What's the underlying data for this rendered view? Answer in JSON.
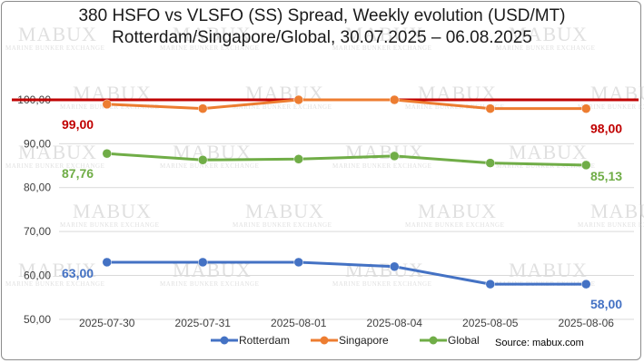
{
  "title_line1": "380 HSFO vs VLSFO (SS) Spread, Weekly evolution (USD/MT)",
  "title_line2": "Rotterdam/Singapore/Global, 30.07.2025 – 06.08.2025",
  "source": "Source: mabux.com",
  "watermark": {
    "brand": "MABUX",
    "tagline": "MARINE BUNKER EXCHANGE"
  },
  "colors": {
    "rotterdam": "#4472c4",
    "singapore": "#ed7d31",
    "global": "#70ad47",
    "reference": "#c00000"
  },
  "chart_data": {
    "type": "line",
    "title": "380 HSFO vs VLSFO (SS) Spread, Weekly evolution (USD/MT) Rotterdam/Singapore/Global, 30.07.2025 – 06.08.2025",
    "categories": [
      "2025-07-30",
      "2025-07-31",
      "2025-08-01",
      "2025-08-04",
      "2025-08-05",
      "2025-08-06"
    ],
    "ylim": [
      45,
      100
    ],
    "yticks": [
      "50,00",
      "60,00",
      "70,00",
      "80,00",
      "90,00",
      "100,00"
    ],
    "grid": "horizontal",
    "legend_position": "bottom",
    "reference_line": 100,
    "series": [
      {
        "name": "Rotterdam",
        "key": "rotterdam",
        "values": [
          63,
          63,
          63,
          62,
          58,
          58
        ],
        "start_label": "63,00",
        "end_label": "58,00"
      },
      {
        "name": "Singapore",
        "key": "singapore",
        "values": [
          99,
          98,
          100,
          100,
          98,
          98
        ],
        "start_label": "99,00",
        "end_label": "98,00"
      },
      {
        "name": "Global",
        "key": "global",
        "values": [
          87.76,
          86.3,
          86.5,
          87.2,
          85.6,
          85.13
        ],
        "start_label": "87,76",
        "end_label": "85,13"
      }
    ]
  }
}
